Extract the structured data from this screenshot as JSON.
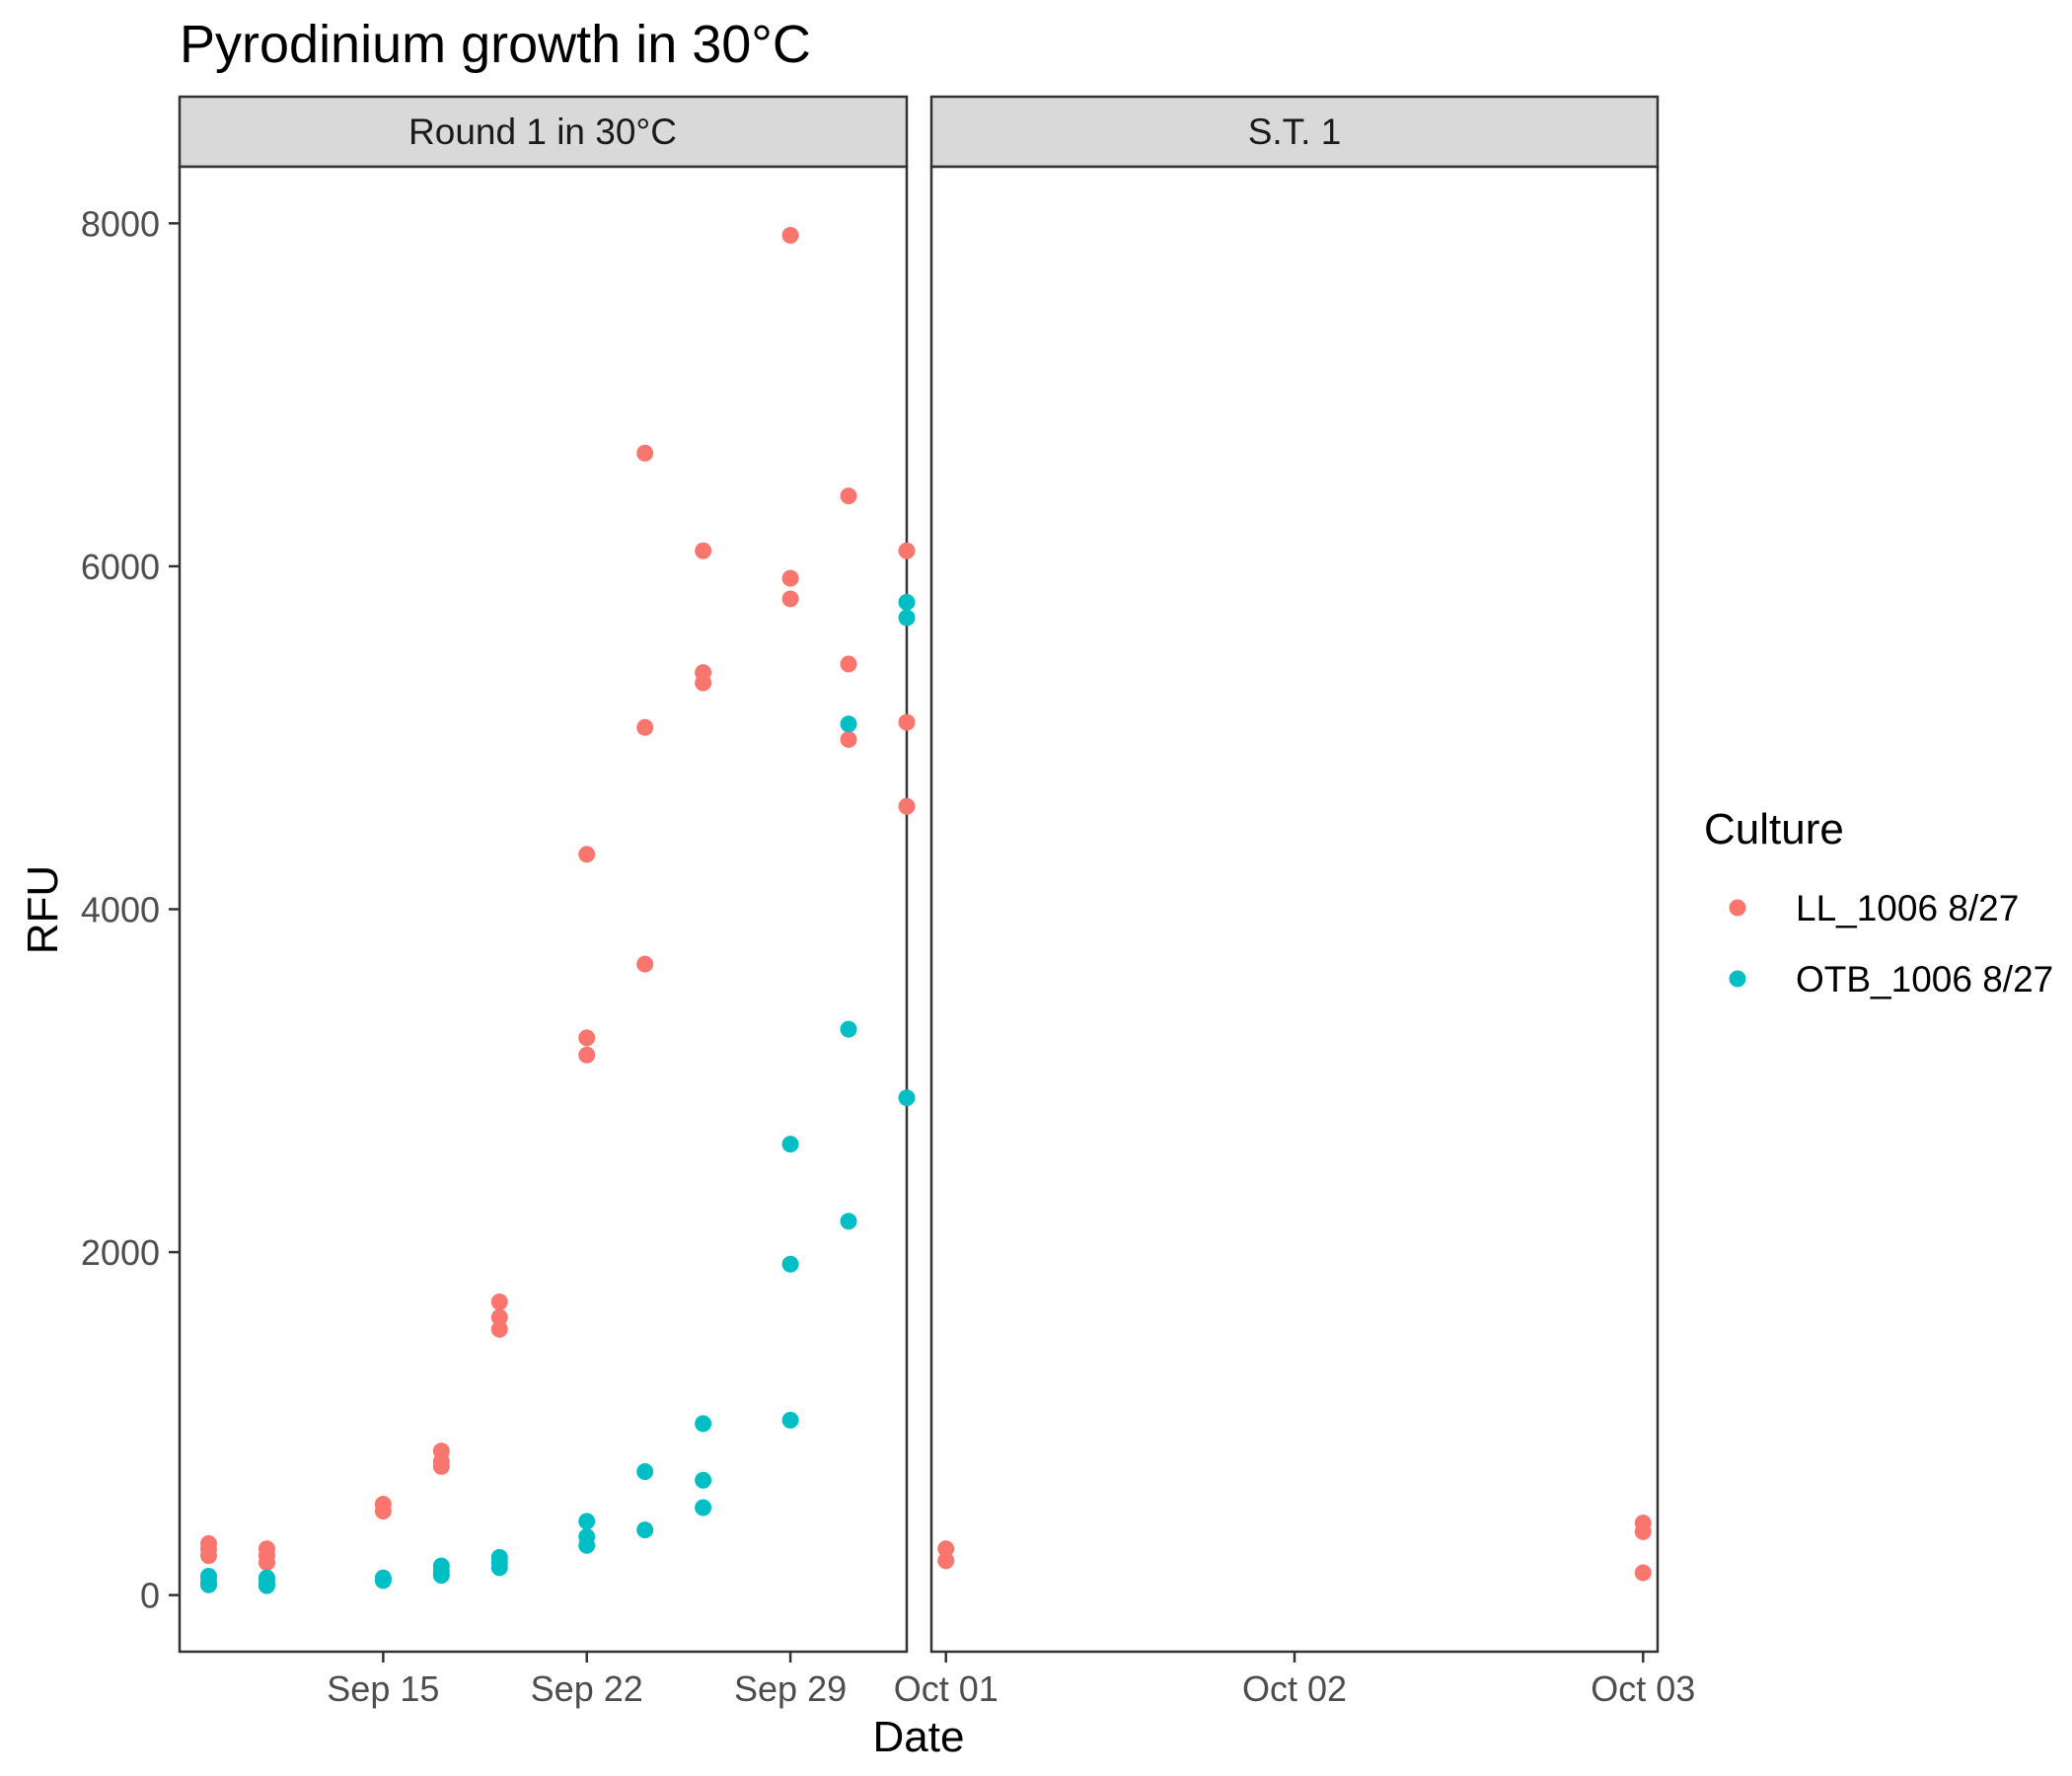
{
  "chart_data": {
    "type": "scatter",
    "title": "Pyrodinium growth in 30°C",
    "xlabel": "Date",
    "ylabel": "RFU",
    "grid": false,
    "legend": {
      "title": "Culture",
      "position": "right"
    },
    "y_ticks": [
      0,
      2000,
      4000,
      6000,
      8000
    ],
    "ylim": [
      -330,
      8330
    ],
    "colors": {
      "LL_1006 8/27": "#F8766D",
      "OTB_1006 8/27": "#00BFC4"
    },
    "panels": [
      {
        "label": "Round 1 in 30°C",
        "x_type": "date",
        "xlim": [
          "2020-09-08",
          "2020-10-03"
        ],
        "x_ticks": [
          {
            "date": "2020-09-15",
            "label": "Sep 15"
          },
          {
            "date": "2020-09-22",
            "label": "Sep 22"
          },
          {
            "date": "2020-09-29",
            "label": "Sep 29"
          }
        ],
        "series": [
          {
            "name": "LL_1006 8/27",
            "points": [
              [
                "2020-09-09",
                300
              ],
              [
                "2020-09-09",
                270
              ],
              [
                "2020-09-09",
                230
              ],
              [
                "2020-09-11",
                270
              ],
              [
                "2020-09-11",
                230
              ],
              [
                "2020-09-11",
                190
              ],
              [
                "2020-09-15",
                530
              ],
              [
                "2020-09-15",
                490
              ],
              [
                "2020-09-17",
                840
              ],
              [
                "2020-09-17",
                780
              ],
              [
                "2020-09-17",
                750
              ],
              [
                "2020-09-19",
                1710
              ],
              [
                "2020-09-19",
                1620
              ],
              [
                "2020-09-19",
                1550
              ],
              [
                "2020-09-22",
                4320
              ],
              [
                "2020-09-22",
                3250
              ],
              [
                "2020-09-22",
                3150
              ],
              [
                "2020-09-24",
                6660
              ],
              [
                "2020-09-24",
                5060
              ],
              [
                "2020-09-24",
                3680
              ],
              [
                "2020-09-26",
                6090
              ],
              [
                "2020-09-26",
                5380
              ],
              [
                "2020-09-26",
                5320
              ],
              [
                "2020-09-29",
                7930
              ],
              [
                "2020-09-29",
                5930
              ],
              [
                "2020-09-29",
                5810
              ],
              [
                "2020-10-01",
                6410
              ],
              [
                "2020-10-01",
                5430
              ],
              [
                "2020-10-01",
                4990
              ],
              [
                "2020-10-03",
                6090
              ],
              [
                "2020-10-03",
                5090
              ],
              [
                "2020-10-03",
                4600
              ]
            ]
          },
          {
            "name": "OTB_1006 8/27",
            "points": [
              [
                "2020-09-09",
                110
              ],
              [
                "2020-09-09",
                80
              ],
              [
                "2020-09-09",
                60
              ],
              [
                "2020-09-11",
                100
              ],
              [
                "2020-09-11",
                70
              ],
              [
                "2020-09-11",
                55
              ],
              [
                "2020-09-15",
                100
              ],
              [
                "2020-09-15",
                85
              ],
              [
                "2020-09-17",
                170
              ],
              [
                "2020-09-17",
                140
              ],
              [
                "2020-09-17",
                115
              ],
              [
                "2020-09-19",
                220
              ],
              [
                "2020-09-19",
                190
              ],
              [
                "2020-09-19",
                160
              ],
              [
                "2020-09-22",
                430
              ],
              [
                "2020-09-22",
                340
              ],
              [
                "2020-09-22",
                290
              ],
              [
                "2020-09-24",
                720
              ],
              [
                "2020-09-24",
                380
              ],
              [
                "2020-09-26",
                1000
              ],
              [
                "2020-09-26",
                670
              ],
              [
                "2020-09-26",
                510
              ],
              [
                "2020-09-29",
                2630
              ],
              [
                "2020-09-29",
                1930
              ],
              [
                "2020-09-29",
                1020
              ],
              [
                "2020-10-01",
                5080
              ],
              [
                "2020-10-01",
                3300
              ],
              [
                "2020-10-01",
                2180
              ],
              [
                "2020-10-03",
                5790
              ],
              [
                "2020-10-03",
                5700
              ],
              [
                "2020-10-03",
                2900
              ]
            ]
          }
        ]
      },
      {
        "label": "S.T. 1",
        "x_type": "date",
        "xlim": [
          "2020-09-30T23:00",
          "2020-10-03T01:00"
        ],
        "x_ticks": [
          {
            "date": "2020-10-01",
            "label": "Oct 01"
          },
          {
            "date": "2020-10-02",
            "label": "Oct 02"
          },
          {
            "date": "2020-10-03",
            "label": "Oct 03"
          }
        ],
        "series": [
          {
            "name": "LL_1006 8/27",
            "points": [
              [
                "2020-10-01",
                270
              ],
              [
                "2020-10-01",
                200
              ],
              [
                "2020-10-03",
                420
              ],
              [
                "2020-10-03",
                370
              ],
              [
                "2020-10-03",
                130
              ]
            ]
          }
        ]
      }
    ]
  }
}
